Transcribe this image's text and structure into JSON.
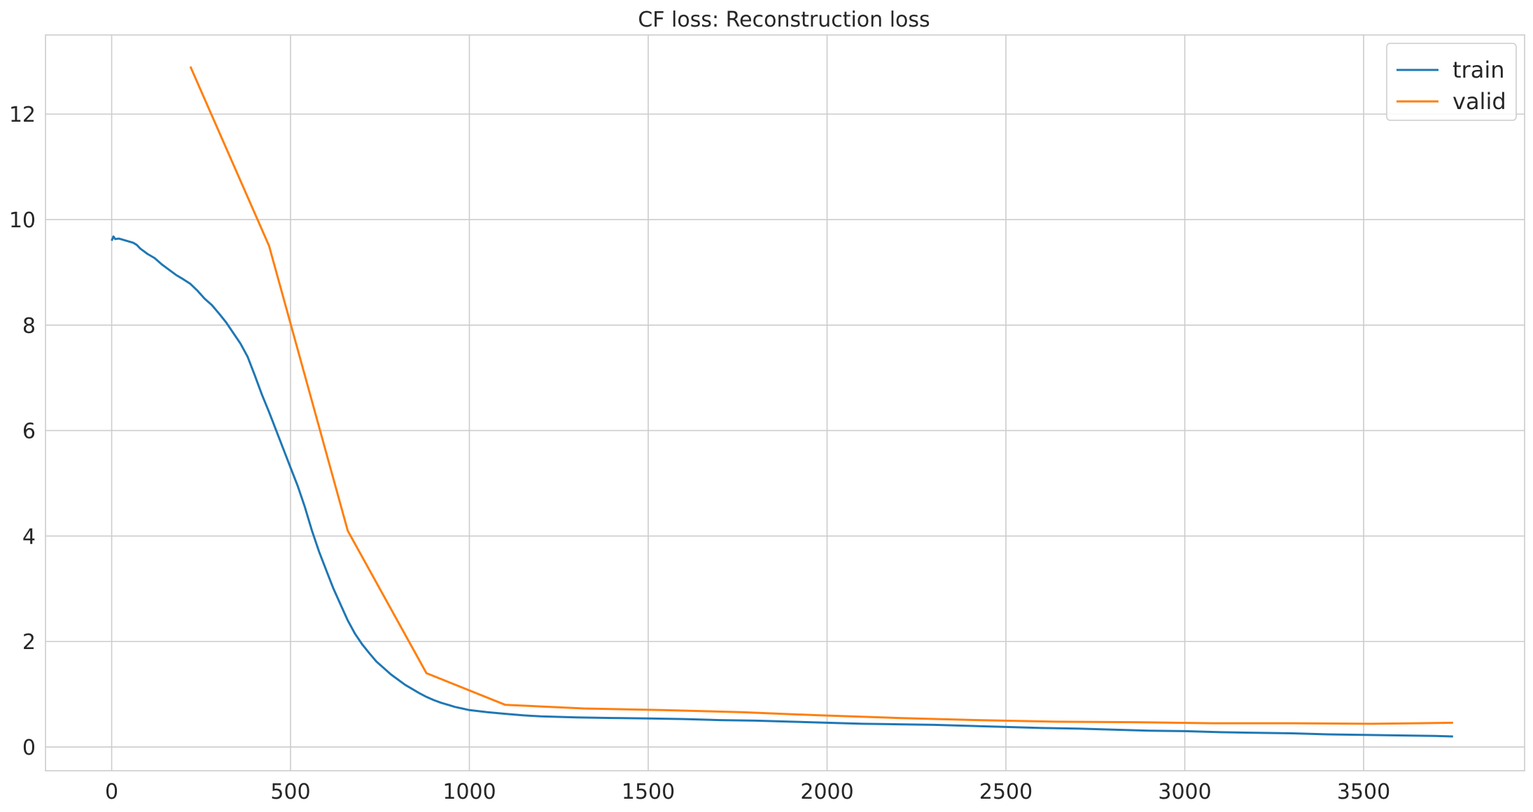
{
  "chart_data": {
    "type": "line",
    "title": "CF loss: Reconstruction loss",
    "xlabel": "",
    "ylabel": "",
    "xlim": [
      -185,
      3950
    ],
    "ylim": [
      -0.45,
      13.5
    ],
    "xticks": [
      0,
      500,
      1000,
      1500,
      2000,
      2500,
      3000,
      3500
    ],
    "yticks": [
      0,
      2,
      4,
      6,
      8,
      10,
      12
    ],
    "grid": true,
    "legend_position": "top-right",
    "series": [
      {
        "name": "train",
        "color": "#1f77b4",
        "x": [
          0,
          5,
          10,
          20,
          30,
          40,
          50,
          60,
          70,
          80,
          90,
          100,
          120,
          140,
          160,
          180,
          200,
          220,
          240,
          260,
          280,
          300,
          320,
          340,
          360,
          380,
          400,
          420,
          440,
          460,
          480,
          500,
          520,
          540,
          560,
          580,
          600,
          620,
          640,
          660,
          680,
          700,
          720,
          740,
          760,
          780,
          800,
          820,
          840,
          860,
          880,
          900,
          920,
          940,
          960,
          980,
          1000,
          1050,
          1100,
          1150,
          1200,
          1300,
          1400,
          1500,
          1600,
          1700,
          1800,
          1900,
          2000,
          2100,
          2200,
          2300,
          2400,
          2500,
          2600,
          2700,
          2800,
          2900,
          3000,
          3100,
          3200,
          3300,
          3400,
          3500,
          3600,
          3700,
          3750
        ],
        "y": [
          9.6,
          9.68,
          9.63,
          9.64,
          9.62,
          9.6,
          9.58,
          9.56,
          9.52,
          9.45,
          9.4,
          9.35,
          9.27,
          9.15,
          9.05,
          8.95,
          8.87,
          8.78,
          8.65,
          8.5,
          8.38,
          8.22,
          8.05,
          7.85,
          7.65,
          7.4,
          7.05,
          6.68,
          6.35,
          6.0,
          5.65,
          5.3,
          4.95,
          4.55,
          4.1,
          3.7,
          3.35,
          3.0,
          2.7,
          2.4,
          2.15,
          1.95,
          1.78,
          1.62,
          1.5,
          1.38,
          1.28,
          1.18,
          1.1,
          1.02,
          0.95,
          0.89,
          0.84,
          0.8,
          0.76,
          0.73,
          0.7,
          0.66,
          0.63,
          0.6,
          0.58,
          0.56,
          0.55,
          0.54,
          0.53,
          0.51,
          0.5,
          0.48,
          0.46,
          0.44,
          0.43,
          0.42,
          0.4,
          0.38,
          0.36,
          0.35,
          0.33,
          0.31,
          0.3,
          0.28,
          0.27,
          0.26,
          0.24,
          0.23,
          0.22,
          0.21,
          0.2
        ]
      },
      {
        "name": "valid",
        "color": "#ff7f0e",
        "x": [
          220,
          440,
          660,
          880,
          1100,
          1320,
          1540,
          1760,
          1980,
          2200,
          2420,
          2640,
          2860,
          3080,
          3300,
          3520,
          3750
        ],
        "y": [
          12.9,
          9.5,
          4.1,
          1.4,
          0.8,
          0.73,
          0.7,
          0.66,
          0.6,
          0.55,
          0.51,
          0.48,
          0.47,
          0.45,
          0.45,
          0.44,
          0.46
        ]
      }
    ]
  }
}
